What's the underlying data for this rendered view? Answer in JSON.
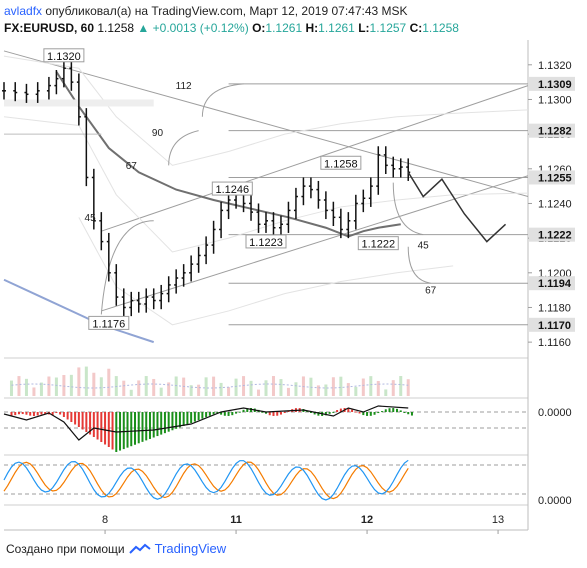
{
  "header": {
    "author": "avladfx",
    "published_text": "опубликовал(а) на TradingView.com, Март 12, 2019 07:47:43 MSK",
    "symbol": "FX:EURUSD, 60",
    "last": "1.1258",
    "change": "+0.0013 (+0.12%)",
    "o_label": "O:",
    "o_value": "1.1261",
    "h_label": "H:",
    "h_value": "1.1261",
    "l_label": "L:",
    "l_value": "1.1257",
    "c_label": "C:",
    "c_value": "1.1258"
  },
  "footer": {
    "created_with": "Создано при помощи",
    "brand": "TradingView"
  },
  "colors": {
    "up": "#26a69a",
    "blue_line": "#2962ff",
    "macd_up": "#1a8f1a",
    "macd_down": "#e53935",
    "stoch_k": "#2196f3",
    "stoch_d": "#f57c00",
    "price_label_bg": "#e0e0e0"
  },
  "chart_data": {
    "type": "line",
    "price_axis_ticks": [
      "1.1320",
      "1.1300",
      "1.1280",
      "1.1260",
      "1.1240",
      "1.1220",
      "1.1200",
      "1.1180",
      "1.1160"
    ],
    "price_labels": [
      "1.1309",
      "1.1282",
      "1.1255",
      "1.1222",
      "1.1194",
      "1.1170"
    ],
    "date_labels": [
      "8",
      "11",
      "12",
      "13"
    ],
    "annotations": [
      {
        "text": "1.1320",
        "price": 1.132
      },
      {
        "text": "1.1258",
        "price": 1.1258
      },
      {
        "text": "1.1246",
        "price": 1.1246
      },
      {
        "text": "1.1223",
        "price": 1.1223
      },
      {
        "text": "1.1222",
        "price": 1.1222
      },
      {
        "text": "1.1176",
        "price": 1.1176
      }
    ],
    "angle_labels": [
      "112",
      "90",
      "67",
      "45",
      "45",
      "67"
    ],
    "macd_axis_label": "0.0000",
    "stoch_axis_label": "0.0000",
    "price_series": [
      [
        0,
        1.1305
      ],
      [
        3,
        1.1304
      ],
      [
        6,
        1.1303
      ],
      [
        9,
        1.1305
      ],
      [
        12,
        1.1308
      ],
      [
        14,
        1.1312
      ],
      [
        16,
        1.1318
      ],
      [
        18,
        1.131
      ],
      [
        20,
        1.129
      ],
      [
        22,
        1.1255
      ],
      [
        24,
        1.123
      ],
      [
        26,
        1.1218
      ],
      [
        28,
        1.12
      ],
      [
        30,
        1.1186
      ],
      [
        32,
        1.118
      ],
      [
        34,
        1.1184
      ],
      [
        36,
        1.1182
      ],
      [
        38,
        1.1186
      ],
      [
        40,
        1.1184
      ],
      [
        42,
        1.1188
      ],
      [
        44,
        1.1193
      ],
      [
        46,
        1.1197
      ],
      [
        48,
        1.12
      ],
      [
        50,
        1.1205
      ],
      [
        52,
        1.121
      ],
      [
        54,
        1.1216
      ],
      [
        56,
        1.1225
      ],
      [
        58,
        1.1236
      ],
      [
        60,
        1.1242
      ],
      [
        62,
        1.1245
      ],
      [
        64,
        1.124
      ],
      [
        66,
        1.1235
      ],
      [
        68,
        1.1228
      ],
      [
        70,
        1.123
      ],
      [
        72,
        1.1226
      ],
      [
        74,
        1.1228
      ],
      [
        76,
        1.1236
      ],
      [
        78,
        1.1244
      ],
      [
        80,
        1.125
      ],
      [
        82,
        1.1248
      ],
      [
        84,
        1.1242
      ],
      [
        86,
        1.1236
      ],
      [
        88,
        1.1232
      ],
      [
        90,
        1.1225
      ],
      [
        92,
        1.123
      ],
      [
        94,
        1.124
      ],
      [
        96,
        1.1243
      ],
      [
        98,
        1.125
      ],
      [
        100,
        1.1268
      ],
      [
        102,
        1.1262
      ],
      [
        104,
        1.126
      ],
      [
        106,
        1.1261
      ],
      [
        108,
        1.1258
      ]
    ],
    "forecast_path": [
      [
        108,
        1.1258
      ],
      [
        112,
        1.1244
      ],
      [
        117,
        1.1254
      ],
      [
        123,
        1.1234
      ],
      [
        129,
        1.1218
      ],
      [
        134,
        1.1228
      ]
    ],
    "x_domain": [
      0,
      140
    ],
    "y_domain": [
      1.1152,
      1.1332
    ],
    "date_positions": {
      "8": 27,
      "11": 62,
      "12": 97,
      "13": 132
    }
  }
}
